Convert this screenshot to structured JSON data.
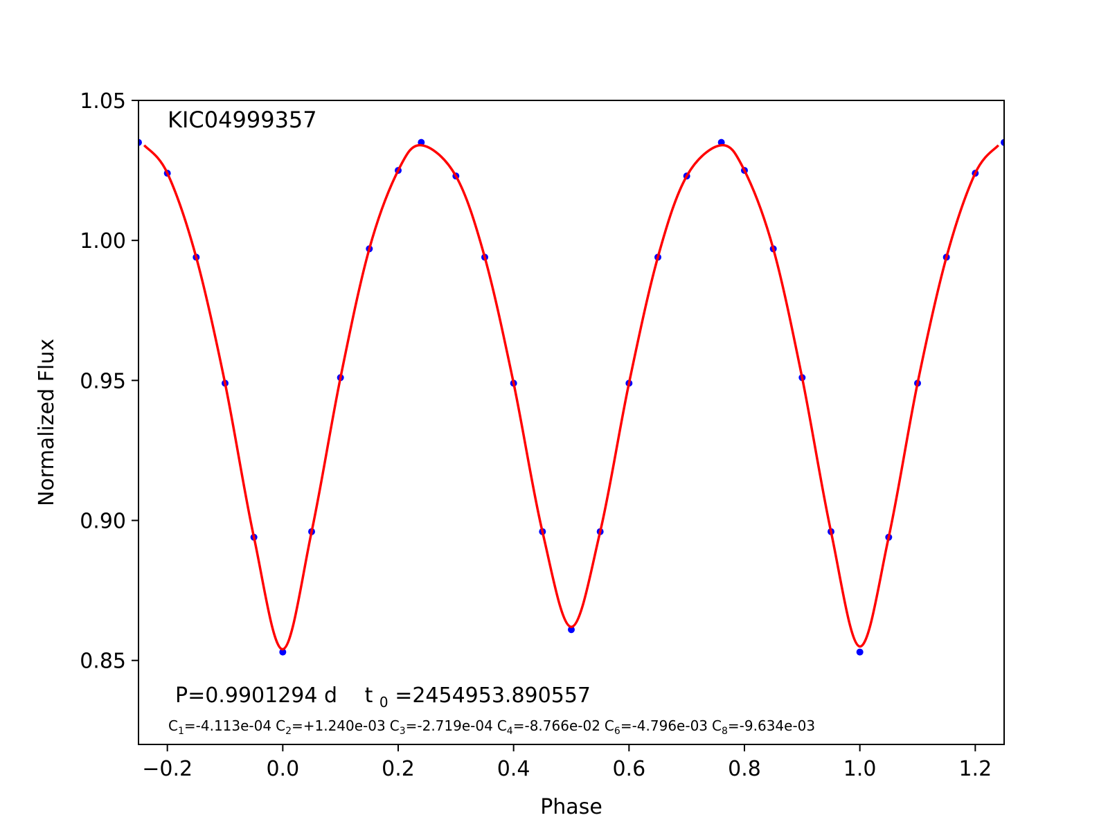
{
  "chart_data": {
    "type": "scatter",
    "xlabel": "Phase",
    "ylabel": "Normalized Flux",
    "xlim": [
      -0.25,
      1.25
    ],
    "ylim": [
      0.82,
      1.05
    ],
    "x_ticks": [
      "−0.2",
      "0.0",
      "0.2",
      "0.4",
      "0.6",
      "0.8",
      "1.0",
      "1.2"
    ],
    "x_tick_values": [
      -0.2,
      0.0,
      0.2,
      0.4,
      0.6,
      0.8,
      1.0,
      1.2
    ],
    "y_ticks": [
      "0.85",
      "0.90",
      "0.95",
      "1.00",
      "1.05"
    ],
    "y_tick_values": [
      0.85,
      0.9,
      0.95,
      1.0,
      1.05
    ],
    "grid": false,
    "annotations": {
      "star": "KIC04999357",
      "period": "P=0.9901294 d",
      "t0_symbol": "t",
      "t0_subscript": "0",
      "t0_value": "=2454953.890557",
      "coefficients": [
        {
          "symbol": "C",
          "sub": "1",
          "value": "=-4.113e-04"
        },
        {
          "symbol": "C",
          "sub": "2",
          "value": "=+1.240e-03"
        },
        {
          "symbol": "C",
          "sub": "3",
          "value": "=-2.719e-04"
        },
        {
          "symbol": "C",
          "sub": "4",
          "value": "=-8.766e-02"
        },
        {
          "symbol": "C",
          "sub": "6",
          "value": "=-4.796e-03"
        },
        {
          "symbol": "C",
          "sub": "8",
          "value": "=-9.634e-03"
        }
      ]
    },
    "series": [
      {
        "kind": "points",
        "color": "#0000ff",
        "x": [
          -0.25,
          -0.2,
          -0.15,
          -0.1,
          -0.05,
          0.0,
          0.05,
          0.1,
          0.15,
          0.2,
          0.24,
          0.3,
          0.35,
          0.4,
          0.45,
          0.5,
          0.55,
          0.6,
          0.65,
          0.7,
          0.76,
          0.8,
          0.85,
          0.9,
          0.95,
          1.0,
          1.05,
          1.1,
          1.15,
          1.2,
          1.25
        ],
        "y": [
          1.035,
          1.024,
          0.994,
          0.949,
          0.894,
          0.853,
          0.896,
          0.951,
          0.997,
          1.025,
          1.035,
          1.023,
          0.994,
          0.949,
          0.896,
          0.861,
          0.896,
          0.949,
          0.994,
          1.023,
          1.035,
          1.025,
          0.997,
          0.951,
          0.896,
          0.853,
          0.894,
          0.949,
          0.994,
          1.024,
          1.035
        ]
      },
      {
        "kind": "line",
        "color": "#ff0000",
        "x": [
          -0.24,
          -0.2,
          -0.15,
          -0.1,
          -0.05,
          0.0,
          0.05,
          0.1,
          0.15,
          0.2,
          0.24,
          0.3,
          0.35,
          0.4,
          0.45,
          0.5,
          0.55,
          0.6,
          0.65,
          0.7,
          0.76,
          0.8,
          0.85,
          0.9,
          0.95,
          1.0,
          1.05,
          1.1,
          1.15,
          1.2,
          1.24
        ],
        "y": [
          1.034,
          1.024,
          0.994,
          0.949,
          0.894,
          0.854,
          0.896,
          0.951,
          0.997,
          1.025,
          1.034,
          1.023,
          0.994,
          0.949,
          0.896,
          0.862,
          0.896,
          0.949,
          0.994,
          1.023,
          1.034,
          1.025,
          0.997,
          0.951,
          0.896,
          0.855,
          0.894,
          0.949,
          0.994,
          1.024,
          1.034
        ]
      }
    ]
  }
}
